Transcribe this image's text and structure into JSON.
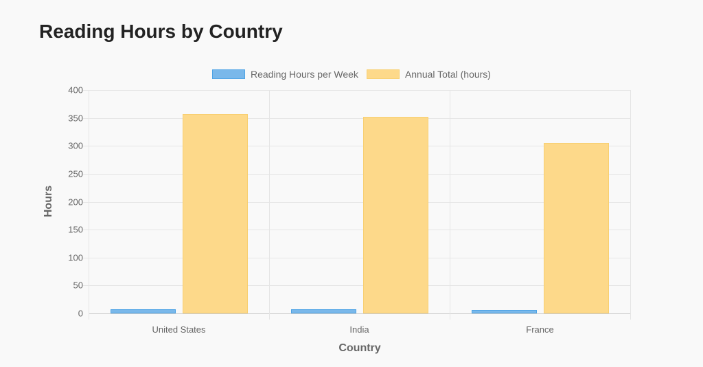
{
  "chart_data": {
    "type": "bar",
    "title": "Reading Hours by Country",
    "categories": [
      "United States",
      "India",
      "France"
    ],
    "series": [
      {
        "name": "Reading Hours per Week",
        "values": [
          7,
          6.9,
          5.9
        ],
        "color": "#7ab8ea",
        "border": "#4da3e6"
      },
      {
        "name": "Annual Total (hours)",
        "values": [
          357,
          352,
          305
        ],
        "color": "#fdd98a",
        "border": "#f8cf70"
      }
    ],
    "xlabel": "Country",
    "ylabel": "Hours",
    "ylim": [
      0,
      400
    ],
    "yticks": [
      0,
      50,
      100,
      150,
      200,
      250,
      300,
      350,
      400
    ],
    "grid": true,
    "legend_position": "top"
  }
}
